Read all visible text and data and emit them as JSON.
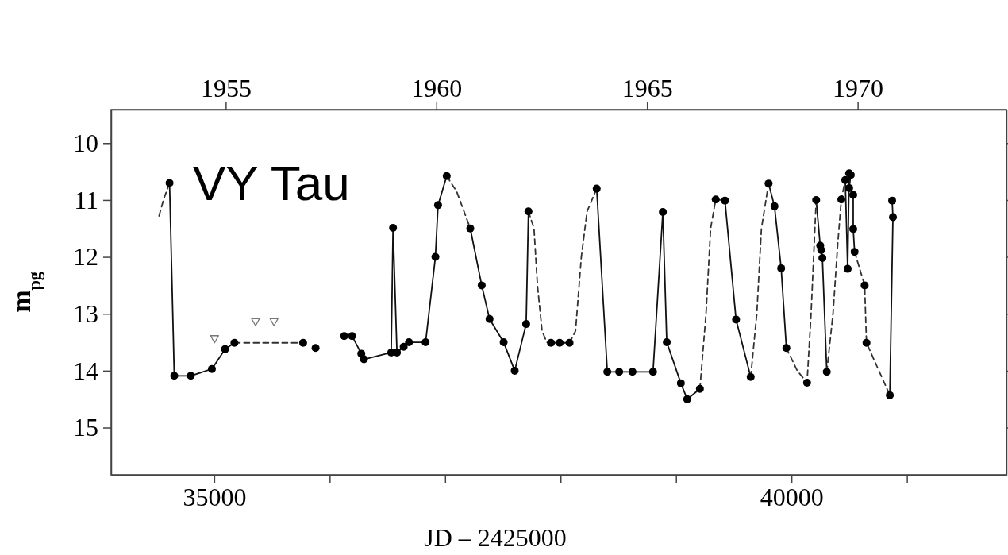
{
  "chart_data": {
    "type": "line",
    "title": "VY Tau",
    "xlabel": "JD – 2425000",
    "ylabel": "m$_{pg}$",
    "xlim": [
      34107,
      41862
    ],
    "xticks": [
      35000,
      {
        "value": 36000,
        "label": null
      },
      {
        "value": 37000,
        "label": null
      },
      {
        "value": 38000,
        "label": null
      },
      {
        "value": 39000,
        "label": null
      },
      40000,
      {
        "value": 41000,
        "label": null
      }
    ],
    "x2lim": [
      1952.28,
      1973.53
    ],
    "x2ticks": [
      1955,
      1960,
      1965,
      1970
    ],
    "ylim": [
      15.83,
      9.41
    ],
    "yticks": [
      10,
      11,
      12,
      13,
      14,
      15
    ],
    "grid": false,
    "series": [
      {
        "line_style": "solid",
        "marker": "none",
        "color": "#111111",
        "x": [
          34613,
          34654,
          34797,
          34980,
          35094,
          35175,
          35300,
          36126,
          36194,
          36274,
          36297,
          36533,
          36549,
          36583,
          36641,
          36687,
          36831,
          36916,
          36939,
          37014,
          37100,
          37218,
          37317,
          37385,
          37507,
          37603,
          37702,
          37722,
          37800,
          37917,
          37992,
          38078,
          38200,
          38313,
          38405,
          38508,
          38623,
          38801,
          38886,
          38920,
          39042,
          39097,
          39207,
          39300,
          39424,
          39520,
          39647,
          39700,
          39802,
          39853,
          39911,
          39956,
          40100,
          40214,
          40249,
          40258,
          40268,
          40306,
          40400,
          40466,
          40487,
          40500,
          40514,
          40500,
          40535,
          40535,
          40547,
          40700,
          40852,
          40879,
          40872
        ],
        "values": [
          10.7,
          14.09,
          14.09,
          13.97,
          13.62,
          13.51,
          null,
          13.39,
          13.39,
          13.7,
          13.8,
          13.68,
          11.49,
          13.68,
          13.58,
          13.5,
          13.5,
          12.0,
          11.09,
          10.58,
          null,
          11.5,
          12.5,
          13.09,
          13.5,
          14.0,
          13.18,
          11.2,
          null,
          13.51,
          13.51,
          13.51,
          null,
          10.8,
          14.02,
          14.02,
          14.02,
          14.02,
          11.21,
          13.5,
          14.22,
          14.5,
          14.32,
          null,
          11.01,
          13.1,
          14.11,
          null,
          10.71,
          11.11,
          12.2,
          13.6,
          null,
          11.0,
          11.8,
          11.88,
          12.02,
          14.02,
          null,
          10.65,
          12.21,
          10.53,
          10.56,
          10.79,
          10.91,
          11.51,
          11.91,
          null,
          14.43,
          11.3,
          11.01
        ]
      },
      {
        "line_style": "dashed",
        "marker": "none",
        "color": "#333333",
        "x": [
          34522,
          34560,
          34613,
          34700,
          35175,
          35770,
          35900,
          37014,
          37100,
          37218,
          37300,
          37722,
          37770,
          37800,
          37840,
          37880,
          37917,
          38000,
          38078,
          38130,
          38180,
          38230,
          38313,
          38400,
          39207,
          39260,
          39300,
          39344,
          39424,
          39500,
          39647,
          39700,
          39740,
          39802,
          39900,
          39956,
          40050,
          40135,
          40170,
          40214,
          40250,
          40306,
          40360,
          40400,
          40432,
          40466,
          40500,
          40547,
          40634,
          40650,
          40852
        ],
        "values": [
          11.28,
          11.0,
          10.7,
          null,
          13.51,
          13.51,
          null,
          10.58,
          10.85,
          11.5,
          null,
          11.2,
          11.5,
          12.5,
          13.3,
          13.5,
          13.51,
          null,
          13.51,
          13.3,
          12.0,
          11.2,
          10.8,
          null,
          14.32,
          13.0,
          11.5,
          10.99,
          11.01,
          null,
          14.11,
          13.0,
          11.5,
          10.71,
          null,
          13.6,
          14.0,
          14.21,
          13.0,
          11.0,
          null,
          14.02,
          13.0,
          11.8,
          10.99,
          10.65,
          null,
          11.91,
          12.5,
          13.51,
          14.43
        ]
      },
      {
        "type": "scatter",
        "marker": "triangle",
        "color": "#777777",
        "x": [
          35003,
          35358,
          35518
        ],
        "values": [
          13.44,
          13.14,
          13.14
        ]
      },
      {
        "type": "scatter",
        "marker": "circle",
        "color": "#000000",
        "x": [
          34613,
          34654,
          34797,
          34980,
          35094,
          35175,
          35770,
          35878,
          36126,
          36194,
          36274,
          36297,
          36533,
          36549,
          36583,
          36641,
          36687,
          36831,
          36916,
          36939,
          37014,
          37218,
          37317,
          37385,
          37507,
          37603,
          37702,
          37722,
          37917,
          37992,
          38078,
          38313,
          38405,
          38508,
          38623,
          38801,
          38886,
          38920,
          39042,
          39097,
          39207,
          39344,
          39424,
          39520,
          39647,
          39802,
          39853,
          39911,
          39956,
          40135,
          40214,
          40249,
          40258,
          40268,
          40306,
          40432,
          40466,
          40487,
          40500,
          40514,
          40500,
          40535,
          40535,
          40547,
          40634,
          40650,
          40852,
          40879,
          40872
        ],
        "values": [
          10.7,
          14.09,
          14.09,
          13.97,
          13.62,
          13.51,
          13.51,
          13.6,
          13.39,
          13.39,
          13.7,
          13.8,
          13.68,
          11.49,
          13.68,
          13.58,
          13.5,
          13.5,
          12.0,
          11.09,
          10.58,
          11.5,
          12.5,
          13.09,
          13.5,
          14.0,
          13.18,
          11.2,
          13.51,
          13.51,
          13.51,
          10.8,
          14.02,
          14.02,
          14.02,
          14.02,
          11.21,
          13.5,
          14.22,
          14.5,
          14.32,
          10.99,
          11.01,
          13.1,
          14.11,
          10.71,
          11.11,
          12.2,
          13.6,
          14.21,
          11.0,
          11.8,
          11.88,
          12.02,
          14.02,
          10.99,
          10.65,
          12.21,
          10.53,
          10.56,
          10.79,
          10.91,
          11.51,
          11.91,
          12.5,
          13.51,
          14.43,
          11.3,
          11.01
        ]
      }
    ]
  }
}
